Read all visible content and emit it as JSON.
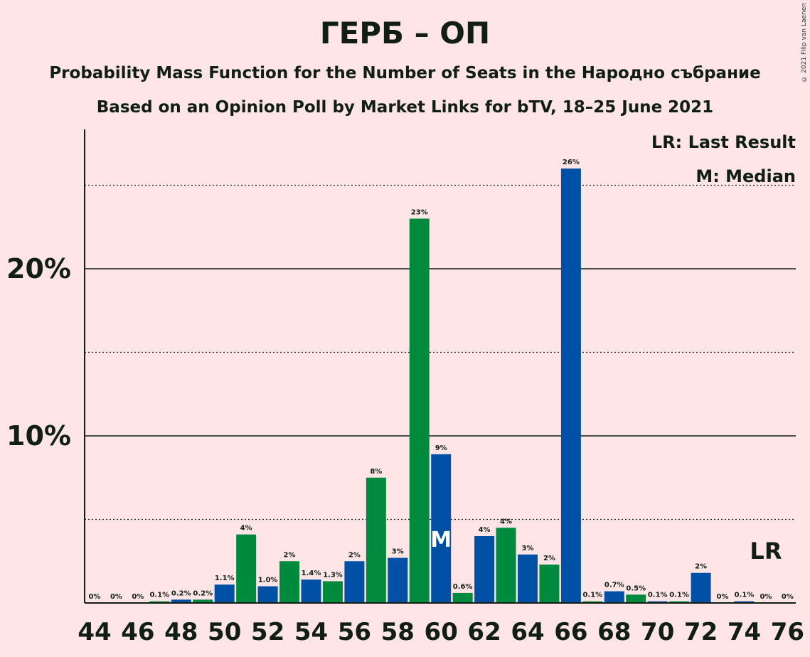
{
  "title": "ГЕРБ – ОП",
  "subtitle_1": "Probability Mass Function for the Number of Seats in the Народно събрание",
  "subtitle_2": "Based on an Opinion Poll by Market Links for bTV, 18–25 June 2021",
  "copyright": "© 2021 Filip van Laenen",
  "legend": {
    "last_result": "LR: Last Result",
    "median": "M: Median"
  },
  "colors": {
    "background": "#ffe5e5",
    "blue": "#0051a5",
    "green": "#008a3e",
    "text": "#101e14"
  },
  "chart_data": {
    "type": "bar",
    "categories": [
      44,
      45,
      46,
      47,
      48,
      49,
      50,
      51,
      52,
      53,
      54,
      55,
      56,
      57,
      58,
      59,
      60,
      61,
      62,
      63,
      64,
      65,
      66,
      67,
      68,
      69,
      70,
      71,
      72,
      73,
      74,
      75,
      76
    ],
    "values": [
      0,
      0,
      0,
      0.1,
      0.2,
      0.2,
      1.1,
      4.1,
      1.0,
      2.5,
      1.4,
      1.3,
      2.5,
      7.5,
      2.7,
      23.0,
      8.9,
      0.6,
      4.0,
      4.5,
      2.9,
      2.3,
      26.0,
      0.1,
      0.7,
      0.5,
      0.1,
      0.1,
      1.8,
      0,
      0.1,
      0,
      0
    ],
    "data_labels": [
      "0%",
      "0%",
      "0%",
      "0.1%",
      "0.2%",
      "0.2%",
      "1.1%",
      "4%",
      "1.0%",
      "2%",
      "1.4%",
      "1.3%",
      "2%",
      "8%",
      "3%",
      "23%",
      "9%",
      "0.6%",
      "4%",
      "4%",
      "3%",
      "2%",
      "26%",
      "0.1%",
      "0.7%",
      "0.5%",
      "0.1%",
      "0.1%",
      "2%",
      "0%",
      "0.1%",
      "0%",
      "0%"
    ],
    "x_tick_labels": [
      "44",
      "46",
      "48",
      "50",
      "52",
      "54",
      "56",
      "58",
      "60",
      "62",
      "64",
      "66",
      "68",
      "70",
      "72",
      "74",
      "76"
    ],
    "y_ticks": [
      {
        "value": 10,
        "label": "10%"
      },
      {
        "value": 20,
        "label": "20%"
      }
    ],
    "y_minor_gridlines": [
      5,
      15,
      25
    ],
    "ylim": [
      0,
      28
    ],
    "median_seat": 60,
    "median_marker": "M",
    "last_result_seat": 75,
    "last_result_marker": "LR",
    "grid": true,
    "legend_position": "top-right"
  }
}
